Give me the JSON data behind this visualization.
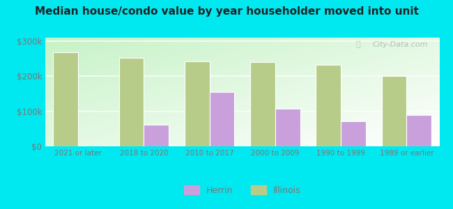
{
  "title": "Median house/condo value by year householder moved into unit",
  "categories": [
    "2021 or later",
    "2018 to 2020",
    "2010 to 2017",
    "2000 to 2009",
    "1990 to 1999",
    "1989 or earlier"
  ],
  "herrin_values": [
    0,
    62000,
    155000,
    108000,
    72000,
    90000
  ],
  "illinois_values": [
    268000,
    253000,
    242000,
    240000,
    232000,
    200000
  ],
  "herrin_color": "#c9a0dc",
  "illinois_color": "#b8cc8a",
  "background_top": "#c8e8c0",
  "background_bottom": "#f5fff5",
  "outer_background": "#00e8f0",
  "ylabel_ticks": [
    "$0",
    "$100k",
    "$200k",
    "$300k"
  ],
  "ytick_values": [
    0,
    100000,
    200000,
    300000
  ],
  "ylim": [
    0,
    310000
  ],
  "bar_width": 0.38,
  "legend_labels": [
    "Herrin",
    "Illinois"
  ],
  "watermark": "City-Data.com",
  "grid_color": "#e0eed0",
  "tick_color": "#777777",
  "title_color": "#222222"
}
